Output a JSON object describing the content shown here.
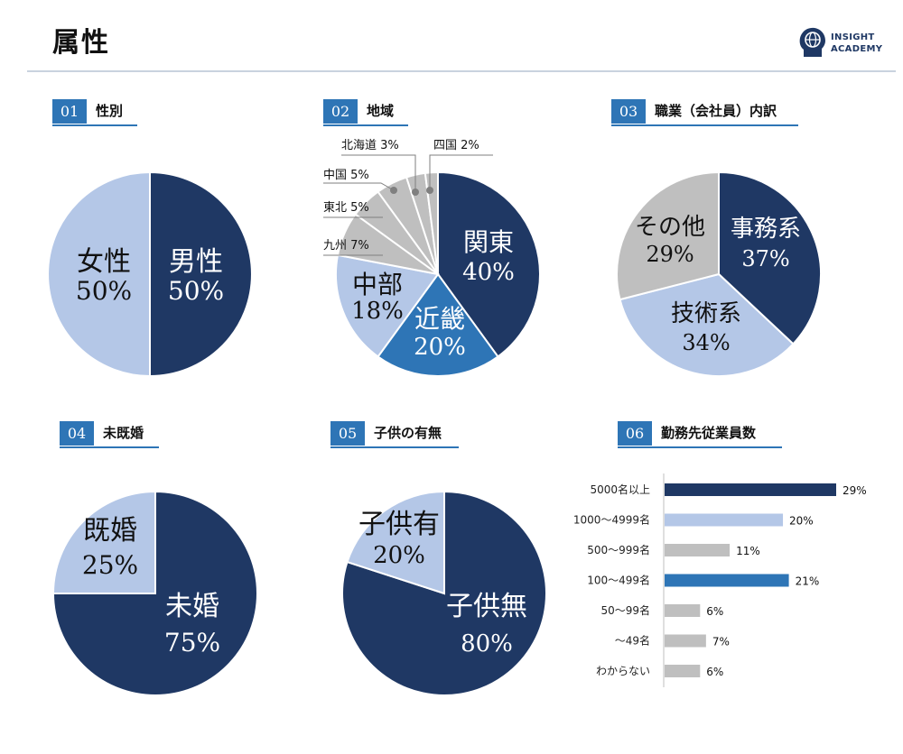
{
  "header": {
    "title": "属性"
  },
  "logo": {
    "line1": "INSIGHT",
    "line2": "ACADEMY"
  },
  "colors": {
    "navy": "#1f3864",
    "light": "#b4c7e7",
    "gray": "#bfbfbf",
    "blue": "#2e75b6",
    "accent": "#2e75b6"
  },
  "sections": [
    {
      "num": "01",
      "title": "性別"
    },
    {
      "num": "02",
      "title": "地域"
    },
    {
      "num": "03",
      "title": "職業（会社員）内訳"
    },
    {
      "num": "04",
      "title": "未既婚"
    },
    {
      "num": "05",
      "title": "子供の有無"
    },
    {
      "num": "06",
      "title": "勤務先従業員数"
    }
  ],
  "chart_data": [
    {
      "id": "gender",
      "type": "pie",
      "title": "性別",
      "slices": [
        {
          "label": "男性",
          "value": 50,
          "display": "50%",
          "color": "#1f3864",
          "text_color": "#ffffff"
        },
        {
          "label": "女性",
          "value": 50,
          "display": "50%",
          "color": "#b4c7e7",
          "text_color": "#111111"
        }
      ]
    },
    {
      "id": "region",
      "type": "pie",
      "title": "地域",
      "slices": [
        {
          "label": "関東",
          "value": 40,
          "display": "40%",
          "color": "#1f3864",
          "text_color": "#ffffff"
        },
        {
          "label": "近畿",
          "value": 20,
          "display": "20%",
          "color": "#2e75b6",
          "text_color": "#ffffff"
        },
        {
          "label": "中部",
          "value": 18,
          "display": "18%",
          "color": "#b4c7e7",
          "text_color": "#111111"
        },
        {
          "label": "九州",
          "value": 7,
          "display": "7%",
          "color": "#bfbfbf",
          "external": true
        },
        {
          "label": "東北",
          "value": 5,
          "display": "5%",
          "color": "#bfbfbf",
          "external": true
        },
        {
          "label": "中国",
          "value": 5,
          "display": "5%",
          "color": "#bfbfbf",
          "external": true
        },
        {
          "label": "北海道",
          "value": 3,
          "display": "3%",
          "color": "#bfbfbf",
          "external": true
        },
        {
          "label": "四国",
          "value": 2,
          "display": "2%",
          "color": "#bfbfbf",
          "external": true
        }
      ]
    },
    {
      "id": "occupation",
      "type": "pie",
      "title": "職業（会社員）内訳",
      "slices": [
        {
          "label": "事務系",
          "value": 37,
          "display": "37%",
          "color": "#1f3864",
          "text_color": "#ffffff"
        },
        {
          "label": "技術系",
          "value": 34,
          "display": "34%",
          "color": "#b4c7e7",
          "text_color": "#111111"
        },
        {
          "label": "その他",
          "value": 29,
          "display": "29%",
          "color": "#bfbfbf",
          "text_color": "#111111"
        }
      ]
    },
    {
      "id": "marital",
      "type": "pie",
      "title": "未既婚",
      "slices": [
        {
          "label": "未婚",
          "value": 75,
          "display": "75%",
          "color": "#1f3864",
          "text_color": "#ffffff"
        },
        {
          "label": "既婚",
          "value": 25,
          "display": "25%",
          "color": "#b4c7e7",
          "text_color": "#111111"
        }
      ]
    },
    {
      "id": "children",
      "type": "pie",
      "title": "子供の有無",
      "slices": [
        {
          "label": "子供無",
          "value": 80,
          "display": "80%",
          "color": "#1f3864",
          "text_color": "#ffffff"
        },
        {
          "label": "子供有",
          "value": 20,
          "display": "20%",
          "color": "#b4c7e7",
          "text_color": "#111111"
        }
      ]
    },
    {
      "id": "employees",
      "type": "bar",
      "orientation": "horizontal",
      "title": "勤務先従業員数",
      "categories": [
        "5000名以上",
        "1000～4999名",
        "500～999名",
        "100～499名",
        "50～99名",
        "～49名",
        "わからない"
      ],
      "values": [
        29,
        20,
        11,
        21,
        6,
        7,
        6
      ],
      "display": [
        "29%",
        "20%",
        "11%",
        "21%",
        "6%",
        "7%",
        "6%"
      ],
      "colors": [
        "#1f3864",
        "#b4c7e7",
        "#bfbfbf",
        "#2e75b6",
        "#bfbfbf",
        "#bfbfbf",
        "#bfbfbf"
      ],
      "xlim": [
        0,
        29
      ]
    }
  ]
}
